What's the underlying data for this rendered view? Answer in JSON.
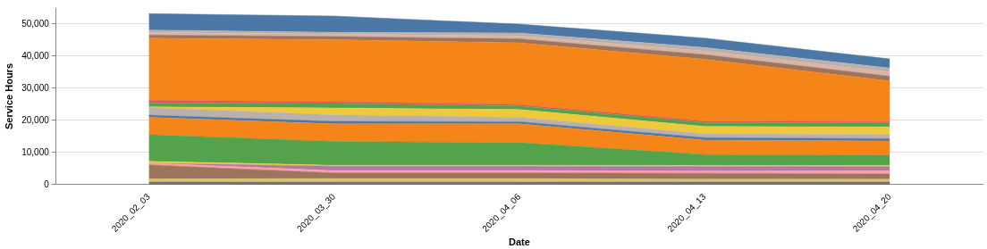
{
  "chart_data": {
    "type": "area",
    "xlabel": "Date",
    "ylabel": "Service Hours",
    "stacked": true,
    "grid": "y",
    "categories": [
      "2020_02_03",
      "2020_03_30",
      "2020_04_06",
      "2020_04_13",
      "2020_04_20"
    ],
    "ylim": [
      0,
      55000
    ],
    "yticks": [
      {
        "value": 0,
        "label": "0"
      },
      {
        "value": 10000,
        "label": "10,000"
      },
      {
        "value": 20000,
        "label": "20,000"
      },
      {
        "value": 30000,
        "label": "30,000"
      },
      {
        "value": 40000,
        "label": "40,000"
      },
      {
        "value": 50000,
        "label": "50,000"
      }
    ],
    "series": [
      {
        "color": "#79706e",
        "values": [
          800,
          800,
          800,
          800,
          800
        ]
      },
      {
        "color": "#d6c26b",
        "values": [
          1000,
          1100,
          1100,
          900,
          900
        ]
      },
      {
        "color": "#9d755d",
        "values": [
          4350,
          1750,
          1750,
          1850,
          1650
        ]
      },
      {
        "color": "#ff9da6",
        "values": [
          550,
          750,
          750,
          650,
          950
        ]
      },
      {
        "color": "#b279a2",
        "values": [
          0,
          1350,
          1350,
          1500,
          1350
        ]
      },
      {
        "color": "#eeca3b",
        "values": [
          600,
          300,
          300,
          300,
          350
        ]
      },
      {
        "color": "#54a24b",
        "values": [
          8300,
          7400,
          7050,
          3400,
          3200
        ]
      },
      {
        "color": "#f58518",
        "values": [
          5400,
          5500,
          5850,
          4500,
          4400
        ]
      },
      {
        "color": "#4c78a8",
        "values": [
          650,
          750,
          650,
          750,
          700
        ]
      },
      {
        "color": "#bab0ac",
        "values": [
          2400,
          2000,
          1400,
          1200,
          1300
        ]
      },
      {
        "color": "#eeca3b",
        "values": [
          150,
          2200,
          2400,
          2300,
          2400
        ]
      },
      {
        "color": "#54a24b",
        "values": [
          1300,
          1400,
          1100,
          1250,
          1250
        ]
      },
      {
        "color": "#e45756",
        "values": [
          800,
          550,
          450,
          400,
          400
        ]
      },
      {
        "color": "#f58518",
        "values": [
          19300,
          19300,
          19250,
          19250,
          12650
        ]
      },
      {
        "color": "#9d755d",
        "values": [
          1000,
          1000,
          1200,
          1450,
          1450
        ]
      },
      {
        "color": "#d8b5a5",
        "values": [
          800,
          700,
          950,
          1100,
          1350
        ]
      },
      {
        "color": "#bab0ac",
        "values": [
          750,
          600,
          900,
          1100,
          1200
        ]
      },
      {
        "color": "#4c78a8",
        "values": [
          5100,
          5050,
          2750,
          2950,
          2850
        ]
      }
    ]
  }
}
